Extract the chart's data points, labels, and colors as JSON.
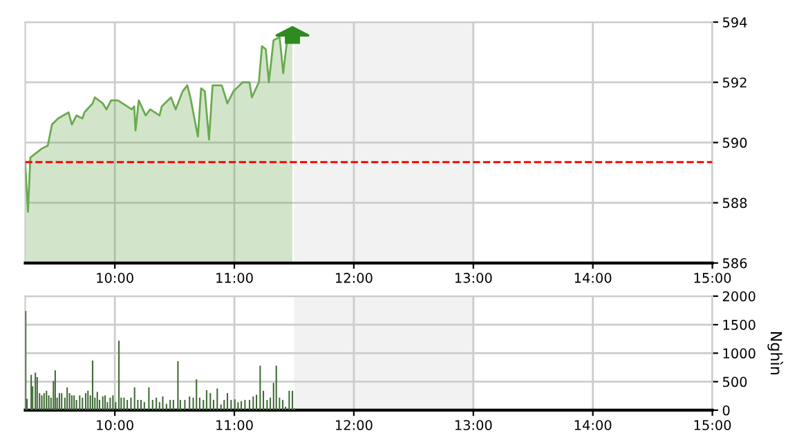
{
  "chart_data": [
    {
      "type": "area",
      "color": "#6aaa4f",
      "x": [
        9.25,
        9.273,
        9.293,
        9.389,
        9.439,
        9.474,
        9.525,
        9.613,
        9.64,
        9.679,
        9.729,
        9.745,
        9.814,
        9.833,
        9.899,
        9.93,
        9.968,
        10.026,
        10.142,
        10.162,
        10.173,
        10.2,
        10.258,
        10.296,
        10.374,
        10.393,
        10.47,
        10.509,
        10.567,
        10.606,
        10.632,
        10.695,
        10.722,
        10.753,
        10.788,
        10.818,
        10.895,
        10.942,
        10.992,
        11.069,
        11.127,
        11.147,
        11.205,
        11.231,
        11.263,
        11.289,
        11.328,
        11.379,
        11.409,
        11.444,
        11.486
      ],
      "values": [
        589.3,
        587.7,
        589.5,
        589.8,
        589.9,
        590.6,
        590.8,
        591.0,
        590.6,
        590.9,
        590.8,
        591.0,
        591.3,
        591.5,
        591.3,
        591.1,
        591.4,
        591.4,
        591.1,
        591.2,
        590.4,
        591.4,
        590.9,
        591.1,
        590.9,
        591.2,
        591.5,
        591.1,
        591.7,
        591.9,
        591.5,
        590.2,
        591.8,
        591.7,
        590.1,
        591.9,
        591.9,
        591.3,
        591.7,
        592.0,
        592.0,
        591.5,
        592.0,
        593.2,
        593.1,
        592.0,
        593.4,
        593.5,
        592.3,
        593.5,
        593.6
      ],
      "xlim": [
        9.25,
        15
      ],
      "xticks": [
        {
          "value": 10,
          "label": "10:00"
        },
        {
          "value": 11,
          "label": "11:00"
        },
        {
          "value": 12,
          "label": "12:00"
        },
        {
          "value": 13,
          "label": "13:00"
        },
        {
          "value": 14,
          "label": "14:00"
        },
        {
          "value": 15,
          "label": "15:00"
        }
      ],
      "ylim": [
        586,
        594
      ],
      "yticks": [
        586,
        588,
        590,
        592,
        594
      ],
      "ref_lines": [
        {
          "axis": "y",
          "value": 589.35,
          "color": "#ff0000",
          "line_style": "dashed"
        }
      ],
      "bands": [
        {
          "axis": "x",
          "from": 11.5,
          "to": 13,
          "color": "#f2f2f2"
        }
      ],
      "grid": true
    },
    {
      "type": "bar",
      "color": "#3f6b35",
      "ylabel": "Nghìn",
      "x": [
        9.254,
        9.265,
        9.3,
        9.312,
        9.335,
        9.35,
        9.37,
        9.389,
        9.408,
        9.428,
        9.447,
        9.466,
        9.486,
        9.501,
        9.517,
        9.536,
        9.555,
        9.582,
        9.601,
        9.621,
        9.64,
        9.659,
        9.679,
        9.706,
        9.729,
        9.756,
        9.775,
        9.795,
        9.814,
        9.833,
        9.853,
        9.872,
        9.899,
        9.918,
        9.938,
        9.961,
        9.984,
        10.007,
        10.034,
        10.053,
        10.077,
        10.104,
        10.135,
        10.165,
        10.192,
        10.219,
        10.247,
        10.285,
        10.316,
        10.347,
        10.374,
        10.401,
        10.432,
        10.463,
        10.49,
        10.528,
        10.548,
        10.586,
        10.625,
        10.656,
        10.683,
        10.71,
        10.741,
        10.768,
        10.799,
        10.826,
        10.857,
        10.888,
        10.915,
        10.942,
        10.973,
        11.004,
        11.031,
        11.058,
        11.089,
        11.127,
        11.158,
        11.185,
        11.216,
        11.243,
        11.274,
        11.301,
        11.328,
        11.351,
        11.378,
        11.405,
        11.428,
        11.459,
        11.486,
        11.502
      ],
      "values": [
        1740,
        200,
        620,
        420,
        660,
        580,
        300,
        260,
        300,
        340,
        260,
        220,
        510,
        700,
        220,
        300,
        300,
        220,
        400,
        300,
        260,
        260,
        180,
        260,
        220,
        300,
        340,
        260,
        870,
        220,
        320,
        180,
        240,
        260,
        140,
        220,
        260,
        140,
        1220,
        220,
        220,
        180,
        220,
        400,
        180,
        180,
        140,
        400,
        180,
        220,
        140,
        240,
        110,
        180,
        180,
        860,
        180,
        180,
        240,
        220,
        540,
        220,
        180,
        350,
        300,
        180,
        380,
        100,
        180,
        300,
        180,
        190,
        140,
        160,
        180,
        180,
        240,
        270,
        780,
        340,
        180,
        220,
        480,
        780,
        220,
        180,
        60,
        340,
        340,
        30
      ],
      "xlim": [
        9.25,
        15
      ],
      "xticks": [
        {
          "value": 10,
          "label": "10:00"
        },
        {
          "value": 11,
          "label": "11:00"
        },
        {
          "value": 12,
          "label": "12:00"
        },
        {
          "value": 13,
          "label": "13:00"
        },
        {
          "value": 14,
          "label": "14:00"
        },
        {
          "value": 15,
          "label": "15:00"
        }
      ],
      "ylim": [
        0,
        2000
      ],
      "yticks": [
        0,
        500,
        1000,
        1500,
        2000
      ],
      "bands": [
        {
          "axis": "x",
          "from": 11.5,
          "to": 13,
          "color": "#f2f2f2"
        }
      ],
      "grid": true
    }
  ]
}
